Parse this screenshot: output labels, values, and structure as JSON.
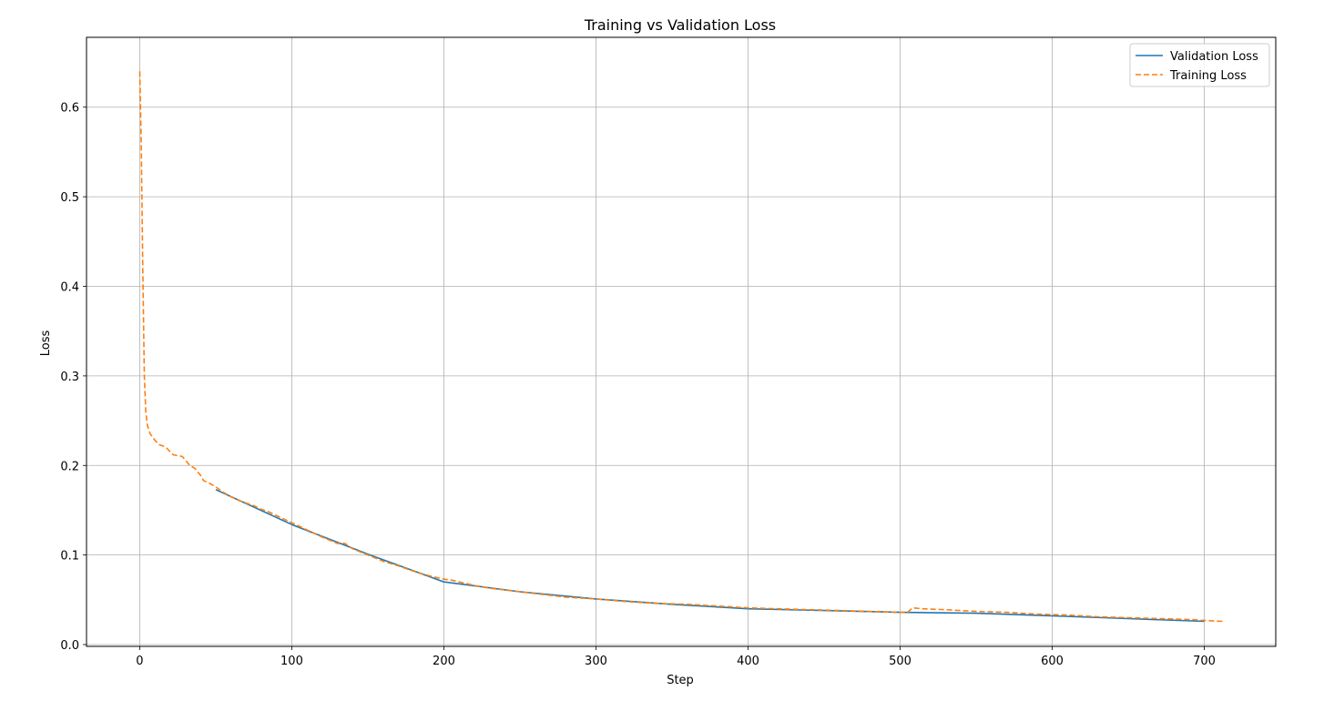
{
  "chart_data": {
    "type": "line",
    "title": "Training vs Validation Loss",
    "xlabel": "Step",
    "ylabel": "Loss",
    "xlim": [
      -35,
      747
    ],
    "ylim": [
      -0.002,
      0.678
    ],
    "xticks": [
      0,
      100,
      200,
      300,
      400,
      500,
      600,
      700
    ],
    "yticks": [
      0.0,
      0.1,
      0.2,
      0.3,
      0.4,
      0.5,
      0.6
    ],
    "ytick_labels": [
      "0.0",
      "0.1",
      "0.2",
      "0.3",
      "0.4",
      "0.5",
      "0.6"
    ],
    "grid": true,
    "legend_position": "top-right",
    "series": [
      {
        "name": "Validation Loss",
        "color": "#1f77b4",
        "style": "solid",
        "points": [
          [
            50,
            0.173
          ],
          [
            100,
            0.134
          ],
          [
            150,
            0.101
          ],
          [
            200,
            0.07
          ],
          [
            250,
            0.059
          ],
          [
            300,
            0.051
          ],
          [
            350,
            0.045
          ],
          [
            400,
            0.04
          ],
          [
            450,
            0.038
          ],
          [
            500,
            0.036
          ],
          [
            550,
            0.035
          ],
          [
            600,
            0.032
          ],
          [
            650,
            0.029
          ],
          [
            700,
            0.026
          ]
        ]
      },
      {
        "name": "Training Loss",
        "color": "#ff7f0e",
        "style": "dashed",
        "points": [
          [
            0,
            0.64
          ],
          [
            1,
            0.56
          ],
          [
            2,
            0.42
          ],
          [
            3,
            0.3
          ],
          [
            4,
            0.26
          ],
          [
            5,
            0.245
          ],
          [
            7,
            0.235
          ],
          [
            10,
            0.228
          ],
          [
            13,
            0.223
          ],
          [
            15,
            0.222
          ],
          [
            18,
            0.219
          ],
          [
            20,
            0.215
          ],
          [
            22,
            0.212
          ],
          [
            25,
            0.211
          ],
          [
            28,
            0.21
          ],
          [
            30,
            0.206
          ],
          [
            33,
            0.2
          ],
          [
            36,
            0.197
          ],
          [
            40,
            0.189
          ],
          [
            42,
            0.183
          ],
          [
            45,
            0.181
          ],
          [
            48,
            0.178
          ],
          [
            50,
            0.176
          ],
          [
            55,
            0.17
          ],
          [
            60,
            0.165
          ],
          [
            65,
            0.161
          ],
          [
            70,
            0.158
          ],
          [
            75,
            0.155
          ],
          [
            80,
            0.151
          ],
          [
            85,
            0.148
          ],
          [
            90,
            0.144
          ],
          [
            95,
            0.14
          ],
          [
            100,
            0.136
          ],
          [
            110,
            0.128
          ],
          [
            120,
            0.12
          ],
          [
            130,
            0.113
          ],
          [
            135,
            0.113
          ],
          [
            140,
            0.107
          ],
          [
            150,
            0.1
          ],
          [
            160,
            0.093
          ],
          [
            170,
            0.088
          ],
          [
            180,
            0.082
          ],
          [
            190,
            0.077
          ],
          [
            200,
            0.073
          ],
          [
            205,
            0.072
          ],
          [
            210,
            0.07
          ],
          [
            220,
            0.066
          ],
          [
            230,
            0.063
          ],
          [
            240,
            0.061
          ],
          [
            250,
            0.059
          ],
          [
            260,
            0.057
          ],
          [
            270,
            0.055
          ],
          [
            280,
            0.053
          ],
          [
            290,
            0.052
          ],
          [
            300,
            0.051
          ],
          [
            320,
            0.048
          ],
          [
            340,
            0.046
          ],
          [
            360,
            0.045
          ],
          [
            380,
            0.043
          ],
          [
            400,
            0.041
          ],
          [
            420,
            0.04
          ],
          [
            440,
            0.039
          ],
          [
            460,
            0.038
          ],
          [
            480,
            0.037
          ],
          [
            500,
            0.036
          ],
          [
            505,
            0.036
          ],
          [
            508,
            0.041
          ],
          [
            515,
            0.04
          ],
          [
            530,
            0.039
          ],
          [
            550,
            0.037
          ],
          [
            570,
            0.036
          ],
          [
            590,
            0.034
          ],
          [
            610,
            0.033
          ],
          [
            630,
            0.031
          ],
          [
            650,
            0.03
          ],
          [
            670,
            0.029
          ],
          [
            690,
            0.028
          ],
          [
            700,
            0.027
          ],
          [
            712,
            0.026
          ]
        ]
      }
    ]
  }
}
